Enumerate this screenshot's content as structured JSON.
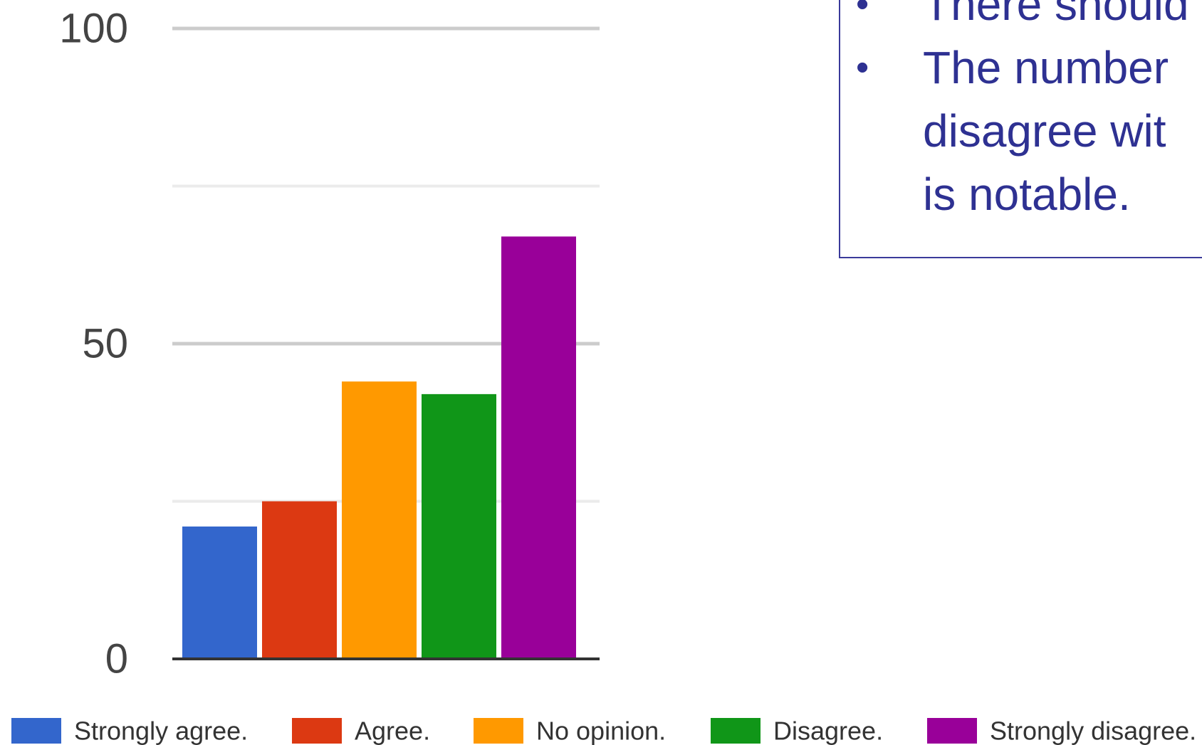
{
  "chart_data": {
    "type": "bar",
    "categories": [
      "Strongly agree.",
      "Agree.",
      "No opinion.",
      "Disagree.",
      "Strongly disagree."
    ],
    "values": [
      21,
      25,
      44,
      42,
      67
    ],
    "colors": [
      "#3366cc",
      "#dc3912",
      "#ff9900",
      "#109618",
      "#990099"
    ],
    "ylim": [
      0,
      100
    ],
    "yticks": [
      0,
      25,
      50,
      75,
      100
    ],
    "ytick_labels": [
      "0",
      "",
      "50",
      "",
      "100"
    ],
    "grid": true,
    "legend_position": "bottom"
  },
  "notes": {
    "bullets": [
      {
        "lines": [
          "There should"
        ]
      },
      {
        "lines": [
          "The number",
          "disagree wit",
          "is notable."
        ]
      }
    ]
  }
}
